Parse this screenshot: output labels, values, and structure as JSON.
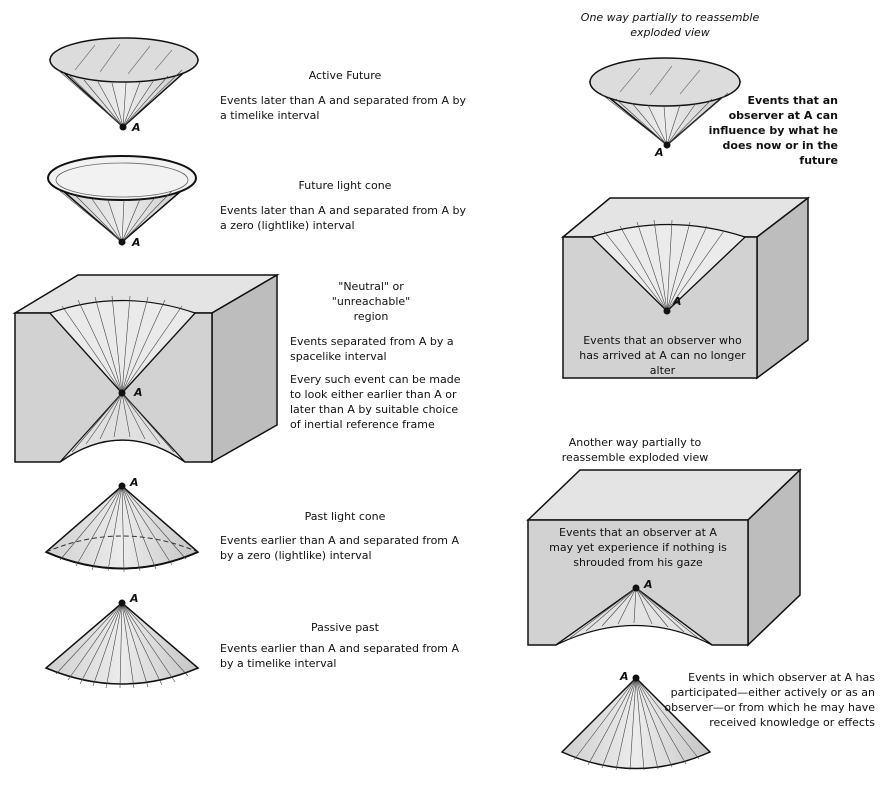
{
  "vertex_label": "A",
  "left_column": {
    "active_future": {
      "title": "Active Future",
      "desc": "Events later than A and separated from A by a timelike interval"
    },
    "future_light_cone": {
      "title": "Future light cone",
      "desc": "Events later than A and separated from A by a zero (lightlike) interval"
    },
    "neutral_region": {
      "title": "\"Neutral\" or \"unreachable\" region",
      "desc1": "Events separated from A by a spacelike interval",
      "desc2": "Every such event can be made to look either earlier than A or later than A by suitable choice of inertial reference frame"
    },
    "past_light_cone": {
      "title": "Past light cone",
      "desc": "Events earlier than A and separated from A by a zero (lightlike) interval"
    },
    "passive_past": {
      "title": "Passive past",
      "desc": "Events earlier than A and separated from A by a timelike interval"
    }
  },
  "right_column": {
    "reassemble_1": {
      "heading": "One way partially to reassemble exploded view",
      "cone_text": "Events that an observer at A can influence by what he does now or in the future",
      "block_text": "Events that an observer who has arrived at A can no longer alter"
    },
    "reassemble_2": {
      "heading": "Another way partially to reassemble exploded view",
      "block_text": "Events that an observer at A may yet experience if nothing is shrouded from his gaze",
      "cone_text": "Events in which observer at A has participated—either actively or as an observer—or from which he may have received knowledge or effects"
    }
  },
  "colors": {
    "cone_fill": "#d9d9d9",
    "block_front": "#d2d2d2",
    "block_top": "#e4e4e4",
    "block_side": "#bdbdbd",
    "ink": "#111111"
  }
}
